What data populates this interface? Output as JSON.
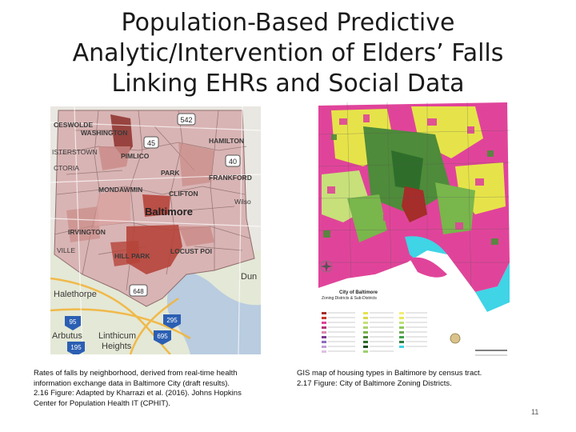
{
  "slide": {
    "title_lines": [
      "Population-Based Predictive",
      "Analytic/Intervention of Elders’ Falls",
      "Linking EHRs and Social Data"
    ],
    "page_number": "11"
  },
  "left_figure": {
    "map_labels": {
      "ceswolde": "CESWOLDE",
      "washington": "WASHINGTON",
      "isterstown": "ISTERSTOWN",
      "ctoria": "CTORIA",
      "hamilton": "HAMILTON",
      "pimlico": "PIMLICO",
      "park": "PARK",
      "frankford": "FRANKFORD",
      "mondawmin": "MONDAWMIN",
      "clifton": "CLIFTON",
      "baltimore": "Baltimore",
      "irvington": "IRVINGTON",
      "ville": "VILLE",
      "hill_park": "HILL PARK",
      "locust_point": "LOCUST POI",
      "halethorpe": "Halethorpe",
      "arbutus": "Arbutus",
      "linthicum": "Linthicum",
      "heights": "Heights",
      "dun": "Dun",
      "wilson": "Wilso"
    },
    "road_shields": [
      "542",
      "45",
      "40",
      "95",
      "195",
      "695",
      "295",
      "648"
    ],
    "caption_lines": [
      "Rates of falls by neighborhood, derived from real-time health information exchange data in Baltimore City (draft results).",
      "2.16 Figure: Adapted by Kharrazi et al. (2016). Johns Hopkins Center for Population Health IT (CPHIT)."
    ]
  },
  "right_figure": {
    "legend_title": "City of Baltimore",
    "legend_subtitle": "Zoning Districts & Sub-Districts",
    "caption_lines": [
      "GIS map of housing types in Baltimore by census tract.",
      "2.17 Figure: City of Baltimore Zoning Districts."
    ]
  },
  "colors": {
    "water": "#b9cce0",
    "falls_light": "#d9b4b4",
    "falls_medium": "#c98a86",
    "falls_dark": "#b5443a",
    "zoning_magenta": "#e0449a",
    "zoning_yellow": "#e6e34a",
    "zoning_green": "#4e8b3a",
    "zoning_cyan": "#3fd4e6"
  }
}
